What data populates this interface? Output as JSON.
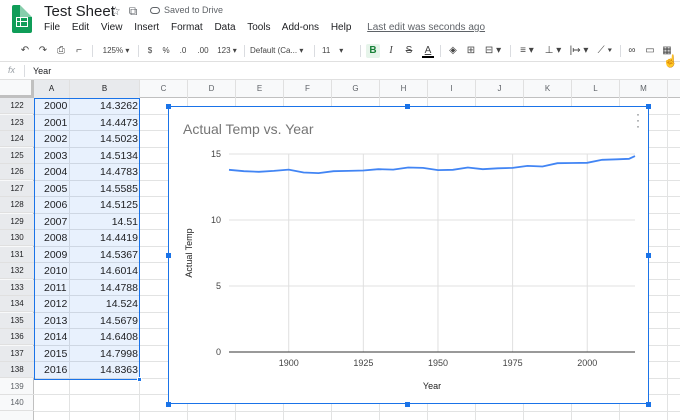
{
  "window": {
    "doc_title": "Test Sheet",
    "save_status": "Saved to Drive",
    "star_icon": "star-icon",
    "move_icon": "folder-move-icon",
    "cloud_icon": "cloud-icon"
  },
  "menu": {
    "items": [
      "File",
      "Edit",
      "View",
      "Insert",
      "Format",
      "Data",
      "Tools",
      "Add-ons",
      "Help"
    ],
    "last_edit": "Last edit was seconds ago"
  },
  "toolbar": {
    "zoom": "125%",
    "currency": "$",
    "percent": "%",
    "decrease_decimals": ".0",
    "increase_decimals": ".00",
    "more_formats": "123",
    "font": "Default (Ca...",
    "font_size": "11",
    "bold": "B",
    "italic": "I",
    "strikethrough": "S",
    "text_color": "A"
  },
  "formula_bar": {
    "fx_label": "fx",
    "value": "Year"
  },
  "columns": [
    "A",
    "B",
    "C",
    "D",
    "E",
    "F",
    "G",
    "H",
    "I",
    "J",
    "K",
    "L",
    "M"
  ],
  "rows": [
    {
      "num": "122",
      "year": "2000",
      "temp": "14.3262"
    },
    {
      "num": "123",
      "year": "2001",
      "temp": "14.4473"
    },
    {
      "num": "124",
      "year": "2002",
      "temp": "14.5023"
    },
    {
      "num": "125",
      "year": "2003",
      "temp": "14.5134"
    },
    {
      "num": "126",
      "year": "2004",
      "temp": "14.4783"
    },
    {
      "num": "127",
      "year": "2005",
      "temp": "14.5585"
    },
    {
      "num": "128",
      "year": "2006",
      "temp": "14.5125"
    },
    {
      "num": "129",
      "year": "2007",
      "temp": "14.51"
    },
    {
      "num": "130",
      "year": "2008",
      "temp": "14.4419"
    },
    {
      "num": "131",
      "year": "2009",
      "temp": "14.5367"
    },
    {
      "num": "132",
      "year": "2010",
      "temp": "14.6014"
    },
    {
      "num": "133",
      "year": "2011",
      "temp": "14.4788"
    },
    {
      "num": "134",
      "year": "2012",
      "temp": "14.524"
    },
    {
      "num": "135",
      "year": "2013",
      "temp": "14.5679"
    },
    {
      "num": "136",
      "year": "2014",
      "temp": "14.6408"
    },
    {
      "num": "137",
      "year": "2015",
      "temp": "14.7998"
    },
    {
      "num": "138",
      "year": "2016",
      "temp": "14.8363"
    },
    {
      "num": "139",
      "year": "",
      "temp": ""
    },
    {
      "num": "140",
      "year": "",
      "temp": ""
    }
  ],
  "colors": {
    "selection": "#1a73e8",
    "series": "#4285f4",
    "bold_active": "#188038"
  },
  "chart_data": {
    "type": "line",
    "title": "Actual Temp vs. Year",
    "xlabel": "Year",
    "ylabel": "Actual Temp",
    "xlim": [
      1880,
      2016
    ],
    "ylim": [
      0,
      15
    ],
    "xticks": [
      1900,
      1925,
      1950,
      1975,
      2000
    ],
    "yticks": [
      0,
      5,
      10,
      15
    ],
    "grid": true,
    "legend": "none",
    "series": [
      {
        "x": [
          1880,
          1885,
          1890,
          1895,
          1900,
          1905,
          1910,
          1915,
          1920,
          1925,
          1930,
          1935,
          1940,
          1945,
          1950,
          1955,
          1960,
          1965,
          1970,
          1975,
          1980,
          1985,
          1990,
          1995,
          2000,
          2005,
          2010,
          2014,
          2016
        ],
        "y": [
          13.8,
          13.7,
          13.65,
          13.72,
          13.82,
          13.6,
          13.55,
          13.7,
          13.72,
          13.75,
          13.85,
          13.82,
          13.98,
          13.95,
          13.78,
          13.8,
          13.98,
          13.85,
          13.92,
          13.95,
          14.1,
          14.05,
          14.3,
          14.32,
          14.33,
          14.56,
          14.6,
          14.64,
          14.84
        ]
      }
    ]
  }
}
